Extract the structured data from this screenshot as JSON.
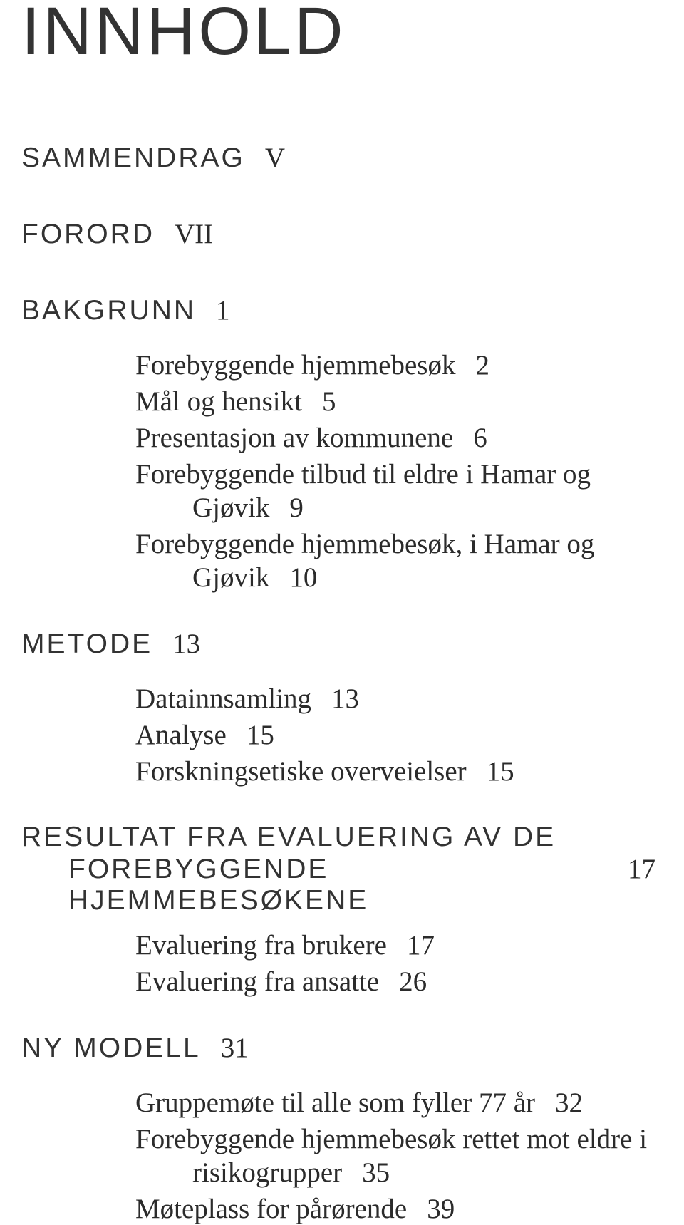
{
  "typography": {
    "title_fontsize": 95,
    "section_fontsize": 39,
    "body_fontsize": 39,
    "title_color": "#333333",
    "heading_color": "#333333",
    "body_color": "#2b2b2b",
    "background_color": "#ffffff"
  },
  "title": "INNHOLD",
  "sections": [
    {
      "heading": "SAMMENDRAG",
      "page": "V",
      "subs": []
    },
    {
      "heading": "FORORD",
      "page": "VII",
      "subs": []
    },
    {
      "heading": "BAKGRUNN",
      "page": "1",
      "subs": [
        {
          "text": "Forebyggende hjemmebesøk",
          "page": "2"
        },
        {
          "text": "Mål og hensikt",
          "page": "5"
        },
        {
          "text": "Presentasjon av kommunene",
          "page": "6"
        },
        {
          "text_line1": "Forebyggende tilbud til eldre i Hamar og",
          "text_line2": "Gjøvik",
          "page": "9"
        },
        {
          "text_line1": "Forebyggende hjemmebesøk, i Hamar og",
          "text_line2": "Gjøvik",
          "page": "10"
        }
      ]
    },
    {
      "heading": "METODE",
      "page": "13",
      "subs": [
        {
          "text": "Datainnsamling",
          "page": "13"
        },
        {
          "text": "Analyse",
          "page": "15"
        },
        {
          "text": "Forskningsetiske overveielser",
          "page": "15"
        }
      ]
    },
    {
      "heading_line1": "RESULTAT FRA EVALUERING AV DE",
      "heading_line2": "FOREBYGGENDE HJEMMEBESØKENE",
      "page": "17",
      "subs": [
        {
          "text": "Evaluering fra brukere",
          "page": "17"
        },
        {
          "text": "Evaluering fra ansatte",
          "page": "26"
        }
      ]
    },
    {
      "heading": "NY MODELL",
      "page": "31",
      "subs": [
        {
          "text": "Gruppemøte til alle som fyller 77 år",
          "page": "32"
        },
        {
          "text_line1": "Forebyggende hjemmebesøk rettet mot eldre i",
          "text_line2": "risikogrupper",
          "page": "35"
        },
        {
          "text": "Møteplass for pårørende",
          "page": "39"
        }
      ]
    }
  ]
}
